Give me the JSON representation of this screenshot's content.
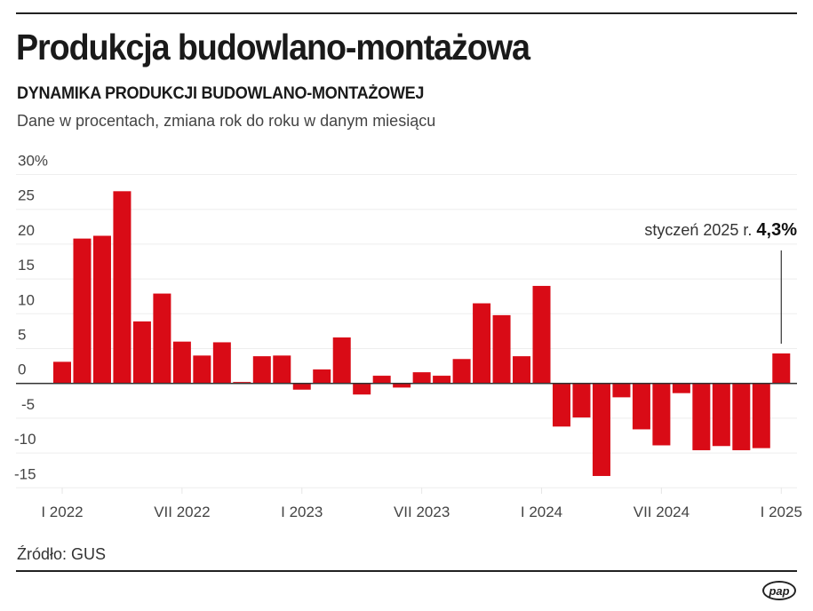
{
  "header": {
    "title": "Produkcja budowlano-montażowa",
    "subtitle": "DYNAMIKA PRODUKCJI BUDOWLANO-MONTAŻOWEJ",
    "description": "Dane w procentach, zmiana rok do roku w danym miesiącu"
  },
  "footer": {
    "source": "Źródło: GUS",
    "logo": "pap"
  },
  "chart_data": {
    "type": "bar",
    "title": "DYNAMIKA PRODUKCJI BUDOWLANO-MONTAŻOWEJ",
    "ylabel": "",
    "xlabel": "",
    "ylim": [
      -15,
      30
    ],
    "y_ticks": [
      {
        "value": 30,
        "label": "30%"
      },
      {
        "value": 25,
        "label": "25"
      },
      {
        "value": 20,
        "label": "20"
      },
      {
        "value": 15,
        "label": "15"
      },
      {
        "value": 10,
        "label": "10"
      },
      {
        "value": 5,
        "label": "5"
      },
      {
        "value": 0,
        "label": "0"
      },
      {
        "value": -5,
        "label": "-5"
      },
      {
        "value": -10,
        "label": "-10"
      },
      {
        "value": -15,
        "label": "-15"
      }
    ],
    "grid": true,
    "bar_color": "#d90b16",
    "categories": [
      "2022-01",
      "2022-02",
      "2022-03",
      "2022-04",
      "2022-05",
      "2022-06",
      "2022-07",
      "2022-08",
      "2022-09",
      "2022-10",
      "2022-11",
      "2022-12",
      "2023-01",
      "2023-02",
      "2023-03",
      "2023-04",
      "2023-05",
      "2023-06",
      "2023-07",
      "2023-08",
      "2023-09",
      "2023-10",
      "2023-11",
      "2023-12",
      "2024-01",
      "2024-02",
      "2024-03",
      "2024-04",
      "2024-05",
      "2024-06",
      "2024-07",
      "2024-08",
      "2024-09",
      "2024-10",
      "2024-11",
      "2024-12",
      "2025-01"
    ],
    "values": [
      3.1,
      20.8,
      21.2,
      27.6,
      8.9,
      12.9,
      6.0,
      4.0,
      5.9,
      0.2,
      3.9,
      4.0,
      -0.9,
      2.0,
      6.6,
      -1.6,
      1.1,
      -0.6,
      1.6,
      1.1,
      3.5,
      11.5,
      9.8,
      3.9,
      14.0,
      -6.2,
      -4.9,
      -13.3,
      -2.0,
      -6.6,
      -8.9,
      -1.4,
      -9.6,
      -9.0,
      -9.6,
      -9.3,
      4.3
    ],
    "x_ticks": [
      {
        "index": 0,
        "label": "I 2022"
      },
      {
        "index": 6,
        "label": "VII 2022"
      },
      {
        "index": 12,
        "label": "I 2023"
      },
      {
        "index": 18,
        "label": "VII 2023"
      },
      {
        "index": 24,
        "label": "I 2024"
      },
      {
        "index": 30,
        "label": "VII 2024"
      },
      {
        "index": 36,
        "label": "I 2025"
      }
    ],
    "annotation": {
      "index": 36,
      "text": "styczeń 2025 r.",
      "value_label": "4,3%"
    }
  }
}
